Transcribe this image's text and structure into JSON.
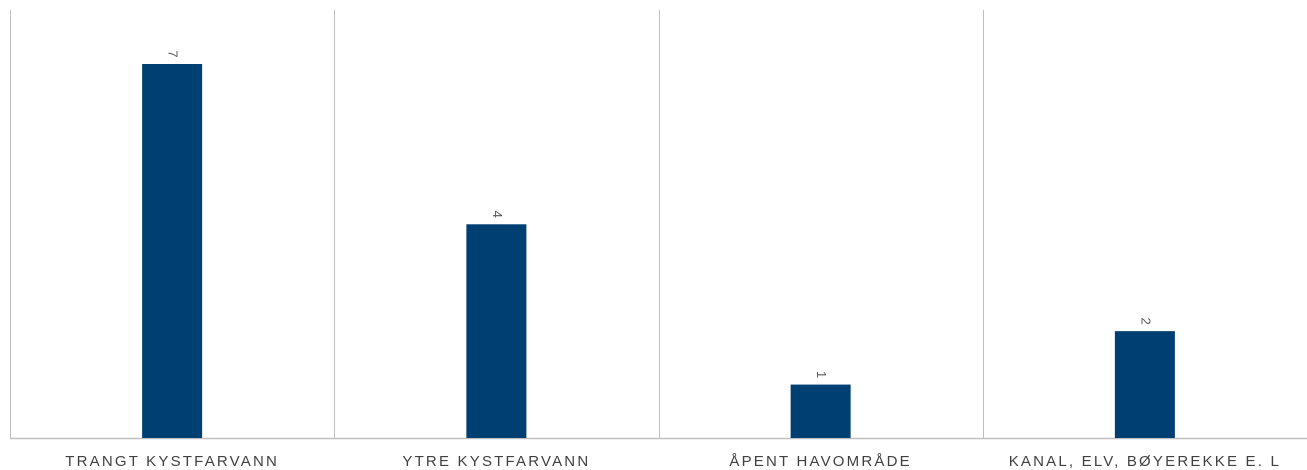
{
  "chart_data": {
    "type": "bar",
    "categories": [
      "TRANGT KYSTFARVANN",
      "YTRE KYSTFARVANN",
      "ÅPENT HAVOMRÅDE",
      "KANAL, ELV, BØYEREKKE E. L"
    ],
    "values": [
      7,
      4,
      1,
      2
    ],
    "ylim": [
      0,
      8
    ],
    "bar_color": "#003f72",
    "divider_color": "#bfbfbf",
    "label_color": "#404040",
    "data_labels": true,
    "data_label_rotation": "vertical",
    "grid": false
  }
}
